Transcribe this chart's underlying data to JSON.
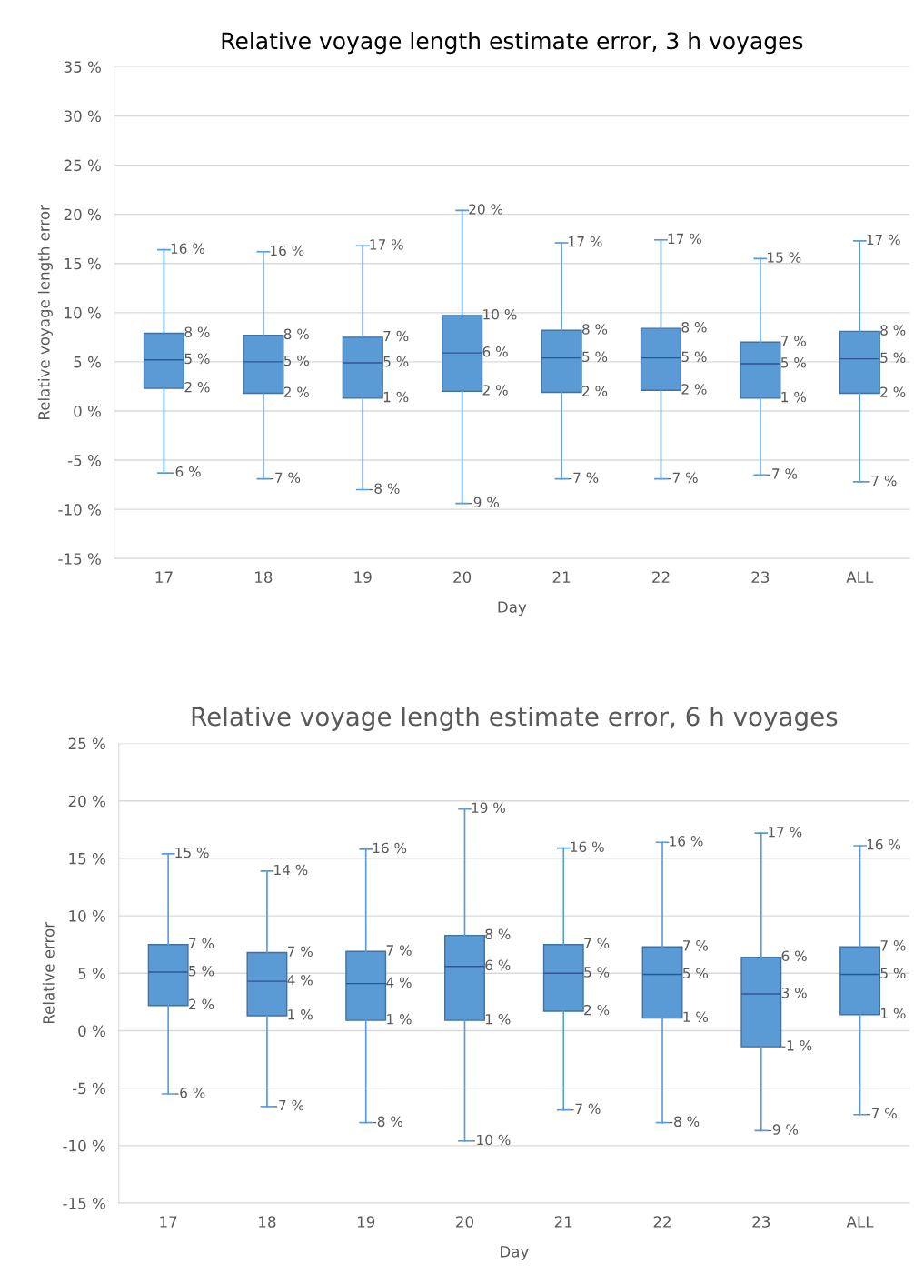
{
  "chart_data": [
    {
      "type": "box",
      "title": "Relative voyage length estimate error, 3 h voyages",
      "xlabel": "Day",
      "ylabel": "Relative voyage length error",
      "categories": [
        "17",
        "18",
        "19",
        "20",
        "21",
        "22",
        "23",
        "ALL"
      ],
      "color": "#5b9bd5",
      "grid": "y",
      "ylim": [
        -15,
        35
      ],
      "yticks": [
        {
          "value": -15,
          "label": "-15 %"
        },
        {
          "value": -10,
          "label": "-10 %"
        },
        {
          "value": -5,
          "label": "-5 %"
        },
        {
          "value": 0,
          "label": "0 %"
        },
        {
          "value": 5,
          "label": "5 %"
        },
        {
          "value": 10,
          "label": "10 %"
        },
        {
          "value": 15,
          "label": "15 %"
        },
        {
          "value": 20,
          "label": "20 %"
        },
        {
          "value": 25,
          "label": "25 %"
        },
        {
          "value": 30,
          "label": "30 %"
        },
        {
          "value": 35,
          "label": "35 %"
        }
      ],
      "boxes": [
        {
          "low": -6.3,
          "q1": 2.3,
          "median": 5.2,
          "q3": 7.9,
          "high": 16.4
        },
        {
          "low": -6.9,
          "q1": 1.8,
          "median": 5.0,
          "q3": 7.7,
          "high": 16.2
        },
        {
          "low": -8.0,
          "q1": 1.3,
          "median": 4.9,
          "q3": 7.5,
          "high": 16.8
        },
        {
          "low": -9.4,
          "q1": 2.0,
          "median": 5.9,
          "q3": 9.7,
          "high": 20.4
        },
        {
          "low": -6.9,
          "q1": 1.9,
          "median": 5.4,
          "q3": 8.2,
          "high": 17.1
        },
        {
          "low": -6.9,
          "q1": 2.1,
          "median": 5.4,
          "q3": 8.4,
          "high": 17.4
        },
        {
          "low": -6.5,
          "q1": 1.3,
          "median": 4.8,
          "q3": 7.0,
          "high": 15.5
        },
        {
          "low": -7.2,
          "q1": 1.8,
          "median": 5.3,
          "q3": 8.1,
          "high": 17.3
        }
      ],
      "value_labels": [
        [
          "16 %",
          "8 %",
          "5 %",
          "2 %",
          "-6 %"
        ],
        [
          "16 %",
          "8 %",
          "5 %",
          "2 %",
          "-7 %"
        ],
        [
          "17 %",
          "7 %",
          "5 %",
          "1 %",
          "-8 %"
        ],
        [
          "20 %",
          "10 %",
          "6 %",
          "2 %",
          "-9 %"
        ],
        [
          "17 %",
          "8 %",
          "5 %",
          "2 %",
          "-7 %"
        ],
        [
          "17 %",
          "8 %",
          "5 %",
          "2 %",
          "-7 %"
        ],
        [
          "15 %",
          "7 %",
          "5 %",
          "1 %",
          "-7 %"
        ],
        [
          "17 %",
          "8 %",
          "5 %",
          "2 %",
          "-7 %"
        ]
      ]
    },
    {
      "type": "box",
      "title": "Relative voyage length estimate error, 6 h voyages",
      "xlabel": "Day",
      "ylabel": "Relative error",
      "categories": [
        "17",
        "18",
        "19",
        "20",
        "21",
        "22",
        "23",
        "ALL"
      ],
      "color": "#5b9bd5",
      "grid": "y",
      "ylim": [
        -15,
        25
      ],
      "yticks": [
        {
          "value": -15,
          "label": "-15 %"
        },
        {
          "value": -10,
          "label": "-10 %"
        },
        {
          "value": -5,
          "label": "-5 %"
        },
        {
          "value": 0,
          "label": "0 %"
        },
        {
          "value": 5,
          "label": "5 %"
        },
        {
          "value": 10,
          "label": "10 %"
        },
        {
          "value": 15,
          "label": "15 %"
        },
        {
          "value": 20,
          "label": "20 %"
        },
        {
          "value": 25,
          "label": "25 %"
        }
      ],
      "boxes": [
        {
          "low": -5.5,
          "q1": 2.2,
          "median": 5.1,
          "q3": 7.5,
          "high": 15.4
        },
        {
          "low": -6.6,
          "q1": 1.3,
          "median": 4.3,
          "q3": 6.8,
          "high": 13.9
        },
        {
          "low": -8.0,
          "q1": 0.9,
          "median": 4.1,
          "q3": 6.9,
          "high": 15.8
        },
        {
          "low": -9.6,
          "q1": 0.9,
          "median": 5.6,
          "q3": 8.3,
          "high": 19.3
        },
        {
          "low": -6.9,
          "q1": 1.7,
          "median": 5.0,
          "q3": 7.5,
          "high": 15.9
        },
        {
          "low": -8.0,
          "q1": 1.1,
          "median": 4.9,
          "q3": 7.3,
          "high": 16.4
        },
        {
          "low": -8.7,
          "q1": -1.4,
          "median": 3.2,
          "q3": 6.4,
          "high": 17.2
        },
        {
          "low": -7.3,
          "q1": 1.4,
          "median": 4.9,
          "q3": 7.3,
          "high": 16.1
        }
      ],
      "value_labels": [
        [
          "15 %",
          "7 %",
          "5 %",
          "2 %",
          "-6 %"
        ],
        [
          "14 %",
          "7 %",
          "4 %",
          "1 %",
          "-7 %"
        ],
        [
          "16 %",
          "7 %",
          "4 %",
          "1 %",
          "-8 %"
        ],
        [
          "19 %",
          "8 %",
          "6 %",
          "1 %",
          "-10 %"
        ],
        [
          "16 %",
          "7 %",
          "5 %",
          "2 %",
          "-7 %"
        ],
        [
          "16 %",
          "7 %",
          "5 %",
          "1 %",
          "-8 %"
        ],
        [
          "17 %",
          "6 %",
          "3 %",
          "-1 %",
          "-9 %"
        ],
        [
          "16 %",
          "7 %",
          "5 %",
          "1 %",
          "-7 %"
        ]
      ]
    }
  ]
}
